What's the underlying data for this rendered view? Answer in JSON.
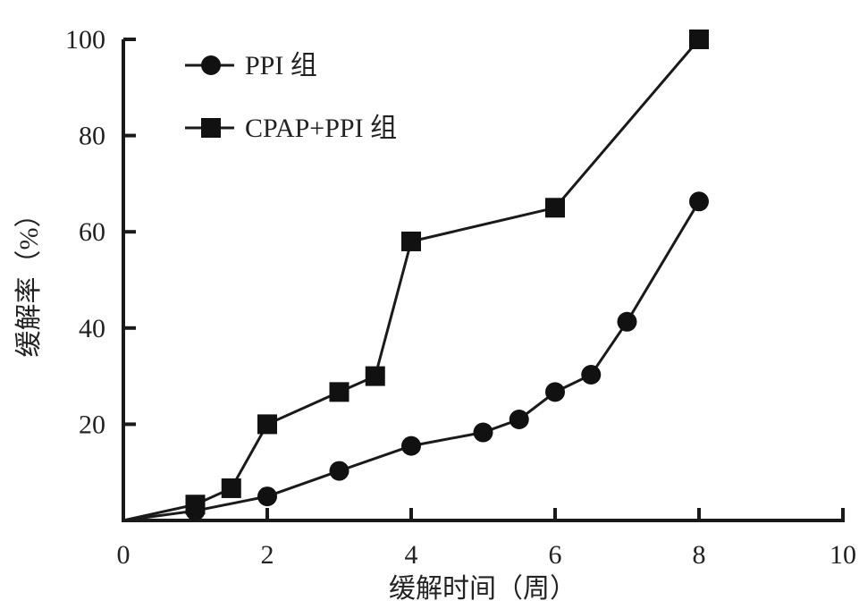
{
  "chart_data": {
    "type": "line",
    "xlabel": "缓解时间（周）",
    "ylabel": "缓解率（%）",
    "xlim": [
      0,
      10
    ],
    "ylim": [
      0,
      100
    ],
    "x_ticks": [
      "0",
      "2",
      "4",
      "6",
      "8",
      "10"
    ],
    "y_ticks": [
      "20",
      "40",
      "60",
      "80",
      "100"
    ],
    "legend_position": "top-left",
    "series": [
      {
        "name": "PPI 组",
        "marker": "circle",
        "points": [
          [
            0,
            0
          ],
          [
            1,
            2
          ],
          [
            2,
            5
          ],
          [
            3,
            10.3
          ],
          [
            4,
            15.5
          ],
          [
            5,
            18.3
          ],
          [
            5.5,
            21
          ],
          [
            6,
            26.7
          ],
          [
            6.5,
            30.3
          ],
          [
            7,
            41.3
          ],
          [
            8,
            66.3
          ]
        ]
      },
      {
        "name": "CPAP+PPI 组",
        "marker": "square",
        "points": [
          [
            0,
            0
          ],
          [
            1,
            3.3
          ],
          [
            1.5,
            6.7
          ],
          [
            2,
            20
          ],
          [
            3,
            26.7
          ],
          [
            3.5,
            30
          ],
          [
            4,
            58
          ],
          [
            6,
            65
          ],
          [
            8,
            100
          ]
        ]
      }
    ]
  }
}
